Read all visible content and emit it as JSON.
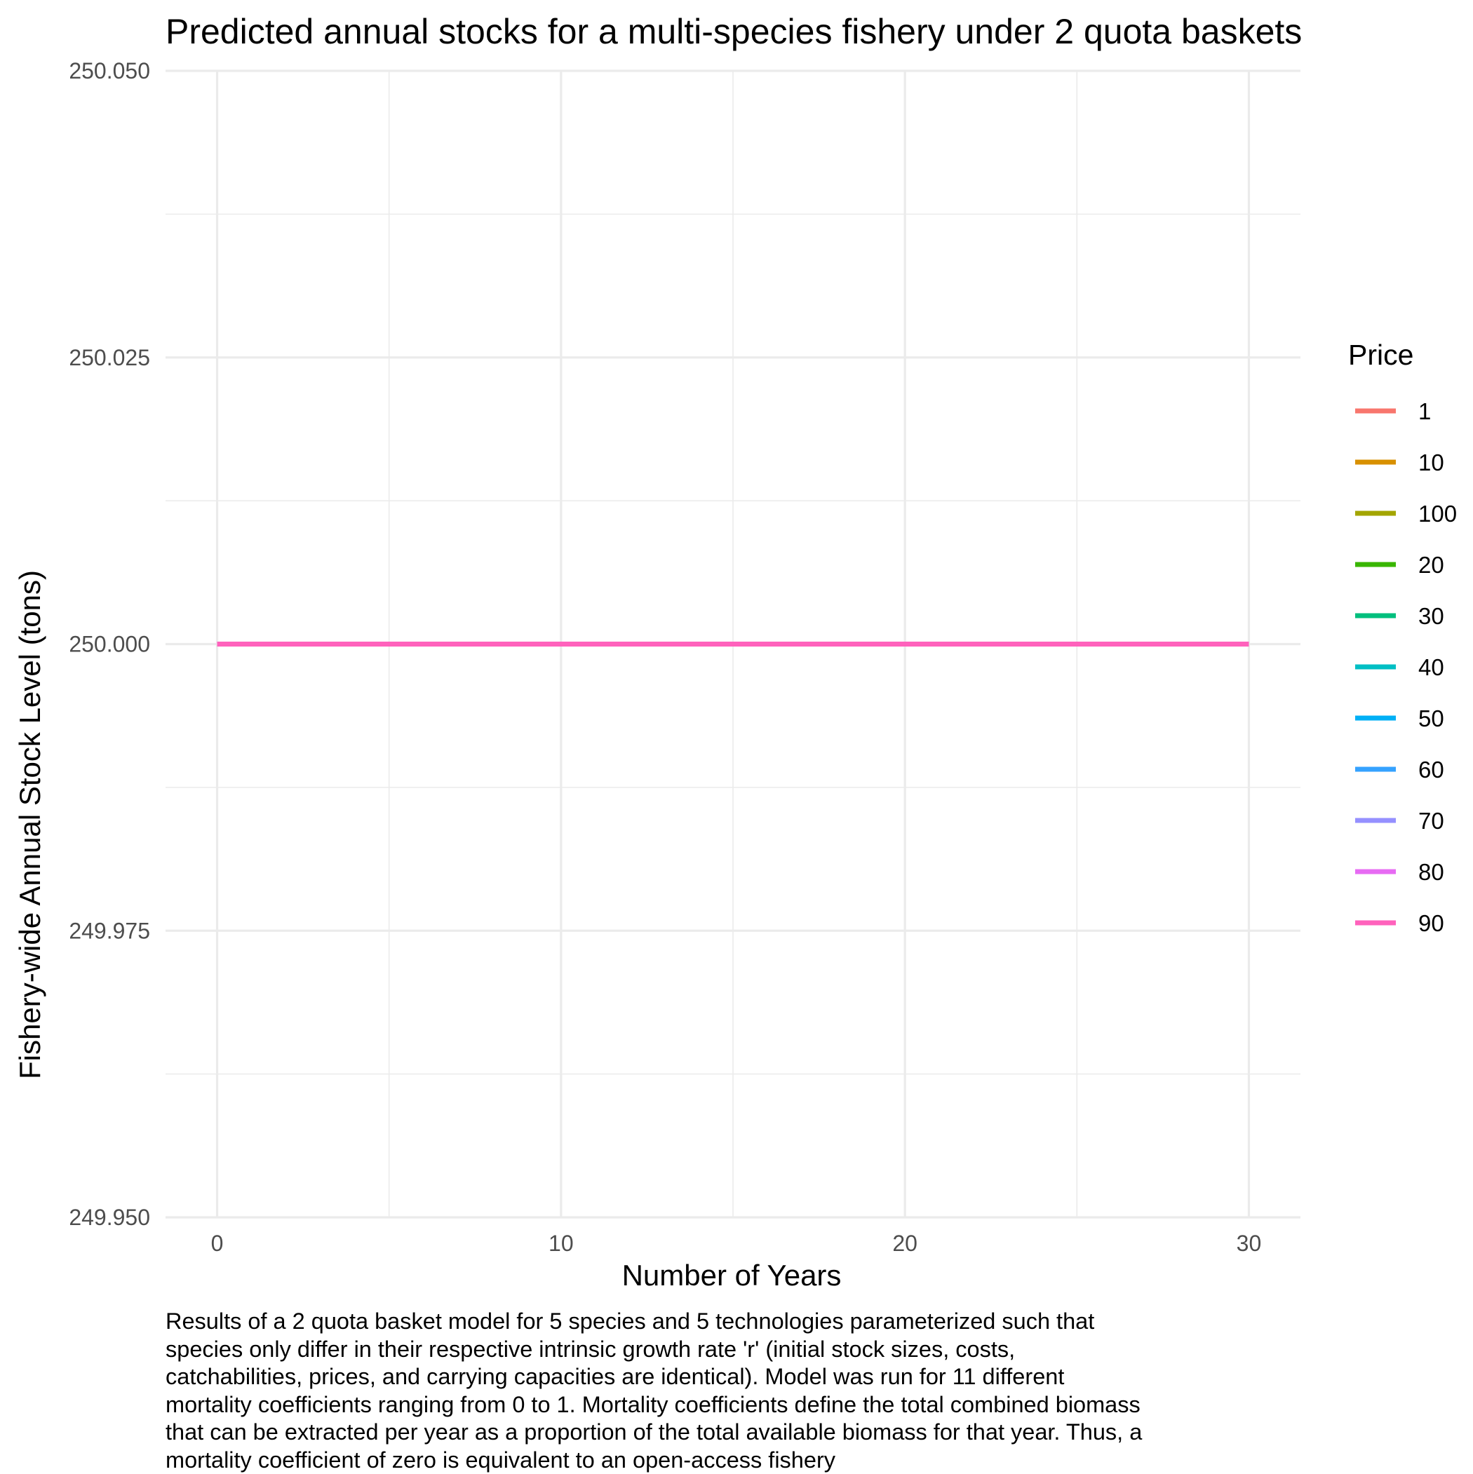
{
  "chart_data": {
    "type": "line",
    "title": "Predicted annual stocks for a multi-species fishery under 2 quota baskets",
    "xlabel": "Number of Years",
    "ylabel": "Fishery-wide Annual Stock Level (tons)",
    "xlim": [
      -1.5,
      31.5
    ],
    "ylim": [
      249.95,
      250.05
    ],
    "x_ticks": [
      0,
      10,
      20,
      30
    ],
    "x_tick_labels": [
      "0",
      "10",
      "20",
      "30"
    ],
    "y_ticks": [
      249.95,
      249.975,
      250.0,
      250.025,
      250.05
    ],
    "y_tick_labels": [
      "249.950",
      "249.975",
      "250.000",
      "250.025",
      "250.050"
    ],
    "grid": true,
    "legend": {
      "title": "Price",
      "placement": "right"
    },
    "series": [
      {
        "name": "1",
        "color": "#F8766D",
        "x": [
          0,
          30
        ],
        "y": [
          250.0,
          250.0
        ]
      },
      {
        "name": "10",
        "color": "#D89000",
        "x": [
          0,
          30
        ],
        "y": [
          250.0,
          250.0
        ]
      },
      {
        "name": "100",
        "color": "#A3A500",
        "x": [
          0,
          30
        ],
        "y": [
          250.0,
          250.0
        ]
      },
      {
        "name": "20",
        "color": "#39B600",
        "x": [
          0,
          30
        ],
        "y": [
          250.0,
          250.0
        ]
      },
      {
        "name": "30",
        "color": "#00BF7D",
        "x": [
          0,
          30
        ],
        "y": [
          250.0,
          250.0
        ]
      },
      {
        "name": "40",
        "color": "#00BFC4",
        "x": [
          0,
          30
        ],
        "y": [
          250.0,
          250.0
        ]
      },
      {
        "name": "50",
        "color": "#00B0F6",
        "x": [
          0,
          30
        ],
        "y": [
          250.0,
          250.0
        ]
      },
      {
        "name": "60",
        "color": "#35A2FF",
        "x": [
          0,
          30
        ],
        "y": [
          250.0,
          250.0
        ]
      },
      {
        "name": "70",
        "color": "#9590FF",
        "x": [
          0,
          30
        ],
        "y": [
          250.0,
          250.0
        ]
      },
      {
        "name": "80",
        "color": "#E76BF3",
        "x": [
          0,
          30
        ],
        "y": [
          250.0,
          250.0
        ]
      },
      {
        "name": "90",
        "color": "#FF62BC",
        "x": [
          0,
          30
        ],
        "y": [
          250.0,
          250.0
        ]
      }
    ],
    "caption_lines": [
      "Results of a 2 quota basket model for 5 species and 5 technologies parameterized such that",
      "species only differ in their respective intrinsic growth rate 'r' (initial stock sizes, costs,",
      "catchabilities, prices, and carrying capacities are identical). Model was run for 11 different",
      "mortality coefficients ranging from 0 to 1. Mortality coefficients define the total combined biomass",
      "that can be extracted per year as a proportion of the total available biomass for that year. Thus, a",
      "mortality coefficient of zero is equivalent to an open-access fishery"
    ]
  }
}
